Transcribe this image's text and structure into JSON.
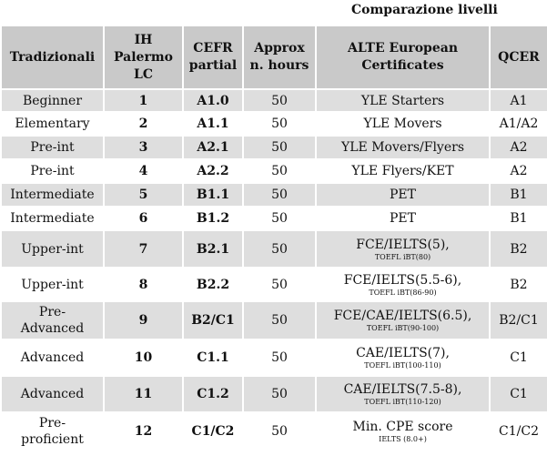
{
  "title": "Comparazione livelli",
  "table": {
    "header": [
      "Tradizionali",
      "IH Palermo LC",
      "CEFR partial",
      "Approx n. hours",
      "ALTE European Certificates",
      "QCER"
    ],
    "rows": [
      {
        "level": "Beginner",
        "ih": "1",
        "cefr": "A1.0",
        "hours": "50",
        "alte": "YLE Starters",
        "qcer": "A1"
      },
      {
        "level": "Elementary",
        "ih": "2",
        "cefr": "A1.1",
        "hours": "50",
        "alte": "YLE Movers",
        "qcer": "A1/A2"
      },
      {
        "level": "Pre-int",
        "ih": "3",
        "cefr": "A2.1",
        "hours": "50",
        "alte": "YLE Movers/Flyers",
        "qcer": "A2"
      },
      {
        "level": "Pre-int",
        "ih": "4",
        "cefr": "A2.2",
        "hours": "50",
        "alte": "YLE Flyers/KET",
        "qcer": "A2"
      },
      {
        "level": "Intermediate",
        "ih": "5",
        "cefr": "B1.1",
        "hours": "50",
        "alte": "PET",
        "qcer": "B1"
      },
      {
        "level": "Intermediate",
        "ih": "6",
        "cefr": "B1.2",
        "hours": "50",
        "alte": "PET",
        "qcer": "B1"
      },
      {
        "level": "Upper-int",
        "ih": "7",
        "cefr": "B2.1",
        "hours": "50",
        "alte": "FCE/IELTS(5),",
        "note": "TOEFL iBT(80)",
        "qcer": "B2"
      },
      {
        "level": "Upper-int",
        "ih": "8",
        "cefr": "B2.2",
        "hours": "50",
        "alte": "FCE/IELTS(5.5-6),",
        "note": "TOEFL iBT(86-90)",
        "qcer": "B2"
      },
      {
        "level": "Pre-Advanced",
        "ih": "9",
        "cefr": "B2/C1",
        "hours": "50",
        "alte": "FCE/CAE/IELTS(6.5),",
        "note": "TOEFL iBT(90-100)",
        "qcer": "B2/C1"
      },
      {
        "level": "Advanced",
        "ih": "10",
        "cefr": "C1.1",
        "hours": "50",
        "alte": "CAE/IELTS(7),",
        "note": "TOEFL iBT(100-110)",
        "qcer": "C1"
      },
      {
        "level": "Advanced",
        "ih": "11",
        "cefr": "C1.2",
        "hours": "50",
        "alte": "CAE/IELTS(7.5-8),",
        "note": "TOEFL iBT(110-120)",
        "qcer": "C1"
      },
      {
        "level": "Pre-proficient",
        "ih": "12",
        "cefr": "C1/C2",
        "hours": "50",
        "alte": "Min. CPE score",
        "note": "IELTS (8.0+)",
        "qcer": "C1/C2"
      }
    ]
  }
}
